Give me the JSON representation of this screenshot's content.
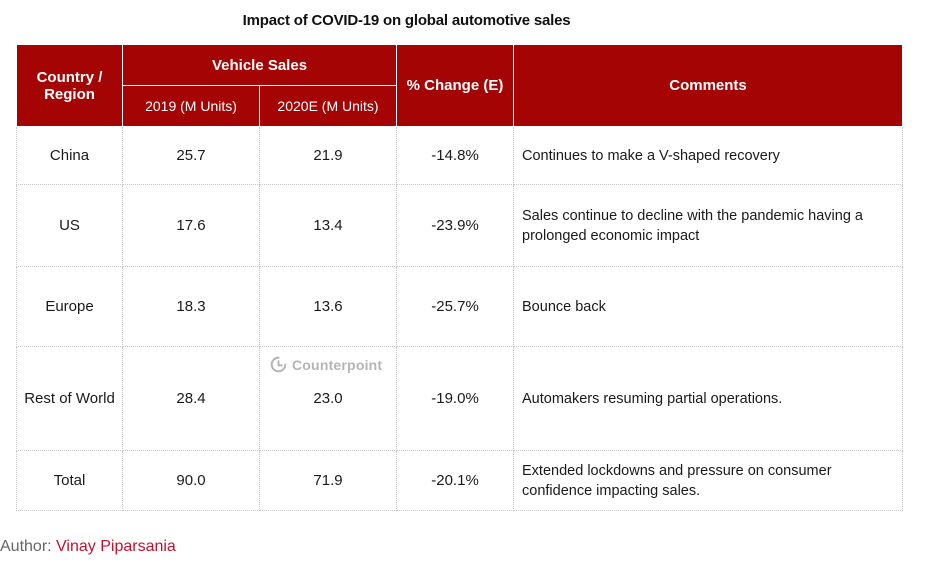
{
  "chart_data": {
    "type": "table",
    "title": "Impact of COVID-19 on global automotive sales",
    "columns": {
      "region": "Country / Region",
      "group": "Vehicle Sales",
      "y2019": "2019 (M Units)",
      "y2020": "2020E (M Units)",
      "change": "% Change (E)",
      "comments": "Comments"
    },
    "rows": [
      {
        "region": "China",
        "y2019": "25.7",
        "y2020": "21.9",
        "change": "-14.8%",
        "comment": "Continues to make a V-shaped recovery"
      },
      {
        "region": "US",
        "y2019": "17.6",
        "y2020": "13.4",
        "change": "-23.9%",
        "comment": "Sales continue to decline with the pandemic having a prolonged economic impact"
      },
      {
        "region": "Europe",
        "y2019": "18.3",
        "y2020": "13.6",
        "change": "-25.7%",
        "comment": "Bounce back"
      },
      {
        "region": "Rest of World",
        "y2019": "28.4",
        "y2020": "23.0",
        "change": "-19.0%",
        "comment": "Automakers resuming partial operations."
      },
      {
        "region": "Total",
        "y2019": "90.0",
        "y2020": "71.9",
        "change": "-20.1%",
        "comment": "Extended lockdowns and pressure on consumer confidence impacting sales."
      }
    ],
    "header_color": "#a50404"
  },
  "watermark": {
    "text": "Counterpoint",
    "icon": "counterpoint-logo-icon"
  },
  "author": {
    "label": "Author:",
    "name": "Vinay Piparsania",
    "name_color": "#c8102e"
  }
}
